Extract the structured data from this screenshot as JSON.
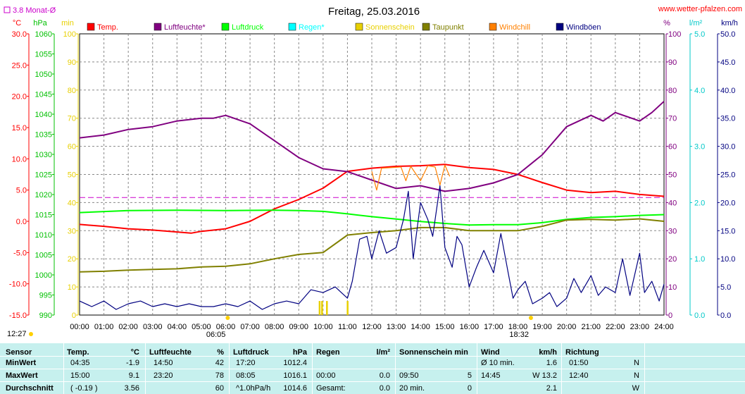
{
  "chart_data": {
    "type": "line",
    "title": "Freitag, 25.03.2016",
    "source": "www.wetter-pfalzen.com",
    "month_avg_label": "3.8 Monat-Ø",
    "axes": {
      "temp": {
        "unit": "°C",
        "range": [
          -15,
          30
        ],
        "ticks": [
          "-15.0",
          "-10.0",
          "-5.0",
          "0.0",
          "5.0",
          "10.0",
          "15.0",
          "20.0",
          "25.0",
          "30.0"
        ]
      },
      "pressure": {
        "unit": "hPa",
        "range": [
          990,
          1060
        ],
        "ticks": [
          "990",
          "995",
          "1000",
          "1005",
          "1010",
          "1015",
          "1020",
          "1025",
          "1030",
          "1035",
          "1040",
          "1045",
          "1050",
          "1055",
          "1060"
        ]
      },
      "minutes": {
        "unit": "min",
        "range": [
          0,
          100
        ],
        "ticks": [
          "0",
          "10",
          "20",
          "30",
          "40",
          "50",
          "60",
          "70",
          "80",
          "90",
          "100"
        ]
      },
      "percent": {
        "unit": "%",
        "range": [
          0,
          100
        ],
        "ticks": [
          "0",
          "10",
          "20",
          "30",
          "40",
          "50",
          "60",
          "70",
          "80",
          "90",
          "100"
        ]
      },
      "rain": {
        "unit": "l/m²",
        "range": [
          0,
          5
        ],
        "ticks": [
          "0.0",
          "1.0",
          "2.0",
          "3.0",
          "4.0",
          "5.0"
        ]
      },
      "wind": {
        "unit": "km/h",
        "range": [
          0,
          50
        ],
        "ticks": [
          "0.0",
          "5.0",
          "10.0",
          "15.0",
          "20.0",
          "25.0",
          "30.0",
          "35.0",
          "40.0",
          "45.0",
          "50.0"
        ]
      }
    },
    "x_ticks": [
      "00:00",
      "01:00",
      "02:00",
      "03:00",
      "04:00",
      "05:00",
      "06:00",
      "07:00",
      "08:00",
      "09:00",
      "10:00",
      "11:00",
      "12:00",
      "13:00",
      "14:00",
      "15:00",
      "16:00",
      "17:00",
      "18:00",
      "19:00",
      "20:00",
      "21:00",
      "22:00",
      "23:00",
      "24:00"
    ],
    "sun_markers": {
      "sunrise_left": "12:27",
      "sunrise": "06:05",
      "sunset": "18:32"
    },
    "legend": [
      {
        "name": "Temp.",
        "color": "#ff0000"
      },
      {
        "name": "Luftfeuchte*",
        "color": "#800080"
      },
      {
        "name": "Luftdruck",
        "color": "#00ff00"
      },
      {
        "name": "Regen*",
        "color": "#00ffff"
      },
      {
        "name": "Sonnenschein",
        "color": "#e8d000"
      },
      {
        "name": "Taupunkt",
        "color": "#808000"
      },
      {
        "name": "Windchill",
        "color": "#ff8000"
      },
      {
        "name": "Windböen",
        "color": "#000080"
      }
    ],
    "month_avg_temp": 3.8,
    "series": [
      {
        "name": "Temp.",
        "axis": "temp",
        "color": "#ff0000",
        "x": [
          0,
          1,
          2,
          3,
          4,
          4.58,
          5,
          6,
          7,
          8,
          9,
          10,
          11,
          12,
          13,
          14,
          15,
          16,
          17,
          18,
          19,
          20,
          21,
          22,
          23,
          24
        ],
        "y": [
          -0.5,
          -0.8,
          -1.2,
          -1.4,
          -1.7,
          -1.9,
          -1.6,
          -1.2,
          0.0,
          2.0,
          3.5,
          5.3,
          8.0,
          8.5,
          8.8,
          8.9,
          9.1,
          8.6,
          8.3,
          7.5,
          6.2,
          5.0,
          4.6,
          4.8,
          4.3,
          4.0
        ]
      },
      {
        "name": "Luftfeuchte*",
        "axis": "percent",
        "color": "#800080",
        "x": [
          0,
          1,
          2,
          3,
          4,
          5,
          5.5,
          6,
          7,
          8,
          9,
          10,
          11,
          12,
          13,
          14,
          15,
          16,
          17,
          18,
          19,
          20,
          21,
          21.5,
          22,
          23,
          23.5,
          24
        ],
        "y": [
          63,
          64,
          66,
          67,
          69,
          70,
          70,
          71,
          68,
          62,
          56,
          52,
          51,
          48,
          45,
          46,
          44,
          45,
          47,
          50,
          57,
          67,
          71,
          69,
          72,
          69,
          72,
          76
        ]
      },
      {
        "name": "Luftdruck",
        "axis": "pressure",
        "color": "#00ff00",
        "x": [
          0,
          2,
          4,
          6,
          8,
          9,
          10,
          11,
          12,
          13,
          14,
          15,
          16,
          17,
          18,
          19,
          20,
          21,
          22,
          23,
          24
        ],
        "y": [
          1015.5,
          1016.0,
          1016.1,
          1016.0,
          1016.1,
          1016.0,
          1015.8,
          1015.2,
          1014.5,
          1013.9,
          1013.3,
          1012.8,
          1012.4,
          1012.5,
          1012.5,
          1013.0,
          1013.8,
          1014.3,
          1014.5,
          1014.8,
          1015.0
        ]
      },
      {
        "name": "Taupunkt",
        "axis": "temp",
        "color": "#808000",
        "x": [
          0,
          1,
          2,
          3,
          4,
          5,
          6,
          7,
          8,
          9,
          10,
          11,
          12,
          13,
          14,
          15,
          16,
          17,
          18,
          19,
          20,
          21,
          22,
          23,
          24
        ],
        "y": [
          -8.1,
          -8.0,
          -7.8,
          -7.7,
          -7.6,
          -7.3,
          -7.2,
          -6.8,
          -6.0,
          -5.3,
          -5.0,
          -2.2,
          -1.8,
          -1.5,
          -1.0,
          -1.0,
          -1.5,
          -1.5,
          -1.5,
          -0.8,
          0.2,
          0.3,
          0.2,
          0.4,
          0.0
        ]
      },
      {
        "name": "Windchill",
        "axis": "temp",
        "color": "#ff8000",
        "x": [
          12.0,
          12.2,
          12.4,
          13.2,
          13.4,
          13.6,
          14.0,
          14.3,
          14.6,
          14.8,
          15.0,
          15.2
        ],
        "y": [
          8.0,
          5.0,
          8.5,
          8.7,
          6.5,
          8.8,
          6.5,
          8.9,
          8.7,
          5.8,
          9.0,
          7.2
        ]
      },
      {
        "name": "Windböen",
        "axis": "wind",
        "color": "#000080",
        "x": [
          0,
          0.5,
          1,
          1.5,
          2,
          2.5,
          3,
          3.5,
          4,
          4.5,
          5,
          5.5,
          6,
          6.5,
          7,
          7.5,
          8,
          8.5,
          9,
          9.5,
          10,
          10.5,
          11,
          11.2,
          11.5,
          11.8,
          12,
          12.3,
          12.6,
          13,
          13.3,
          13.5,
          13.7,
          14,
          14.3,
          14.5,
          14.8,
          15,
          15.3,
          15.5,
          15.7,
          16,
          16.3,
          16.6,
          17,
          17.3,
          17.6,
          17.8,
          18,
          18.3,
          18.6,
          19,
          19.3,
          19.6,
          20,
          20.3,
          20.6,
          21,
          21.3,
          21.6,
          22,
          22.3,
          22.6,
          23,
          23.2,
          23.5,
          23.8,
          24
        ],
        "y": [
          2.5,
          1.5,
          2.5,
          1.0,
          2.0,
          2.5,
          1.5,
          2.0,
          1.5,
          2.0,
          1.5,
          1.5,
          2.0,
          1.5,
          2.5,
          1.0,
          2.0,
          2.5,
          2.0,
          4.5,
          4.0,
          5.0,
          3.0,
          6.0,
          13.5,
          14.0,
          10.0,
          15.0,
          11.0,
          12.0,
          17.0,
          22.0,
          10.0,
          20.0,
          17.0,
          14.0,
          23.0,
          12.0,
          8.5,
          14.0,
          12.5,
          5.0,
          8.5,
          11.5,
          7.5,
          14.5,
          7.5,
          3.0,
          4.5,
          6.0,
          2.0,
          3.0,
          4.0,
          1.5,
          3.0,
          6.5,
          4.0,
          7.0,
          3.5,
          5.0,
          4.0,
          10.0,
          3.5,
          11.0,
          4.0,
          6.0,
          2.5,
          5.5
        ]
      },
      {
        "name": "Sonnenschein",
        "axis": "minutes",
        "color": "#e8d000",
        "x": [
          9.85,
          9.95,
          10.15,
          11.0
        ],
        "y": [
          5,
          5,
          5,
          5
        ]
      }
    ]
  },
  "stats": {
    "headers": {
      "sensor": "Sensor",
      "temp": "Temp.",
      "temp_unit": "°C",
      "hum": "Luftfeuchte",
      "hum_unit": "%",
      "press": "Luftdruck",
      "press_unit": "hPa",
      "rain": "Regen",
      "rain_unit": "l/m²",
      "sun": "Sonnenschein min",
      "wind": "Wind",
      "wind_unit": "km/h",
      "dir": "Richtung"
    },
    "rows": [
      {
        "label": "MinWert",
        "temp_time": "04:35",
        "temp_val": "-1.9",
        "hum_time": "14:50",
        "hum_val": "42",
        "press_time": "17:20",
        "press_val": "1012.4",
        "rain_time": "",
        "rain_val": "",
        "sun_time": "",
        "sun_val": "",
        "wind_time": "Ø 10 min.",
        "wind_val": "1.6",
        "dir_time": "01:50",
        "dir_val": "N"
      },
      {
        "label": "MaxWert",
        "temp_time": "15:00",
        "temp_val": "9.1",
        "hum_time": "23:20",
        "hum_val": "78",
        "press_time": "08:05",
        "press_val": "1016.1",
        "rain_time": "00:00",
        "rain_val": "0.0",
        "sun_time": "09:50",
        "sun_val": "5",
        "wind_time": "14:45",
        "wind_val": "W 13.2",
        "dir_time": "12:40",
        "dir_val": "N"
      },
      {
        "label": "Durchschnitt",
        "temp_time": "( -0.19 )",
        "temp_val": "3.56",
        "hum_time": "",
        "hum_val": "60",
        "press_time": "^1.0hPa/h",
        "press_val": "1014.6",
        "rain_time": "Gesamt:",
        "rain_val": "0.0",
        "sun_time": "20 min.",
        "sun_val": "0",
        "wind_time": "",
        "wind_val": "2.1",
        "dir_time": "",
        "dir_val": "W"
      }
    ]
  }
}
